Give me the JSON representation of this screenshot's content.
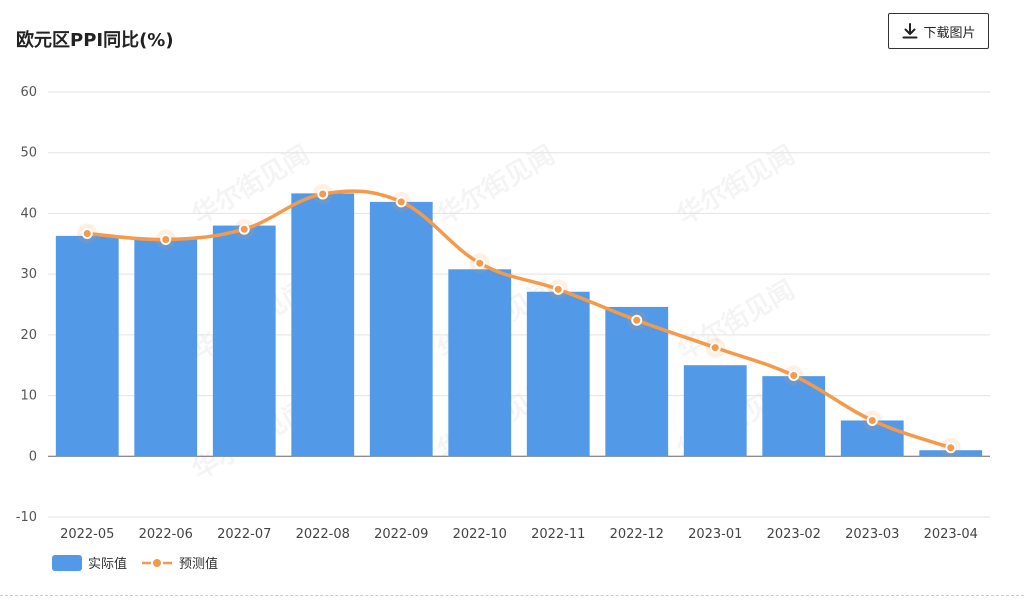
{
  "header": {
    "title": "欧元区PPI同比(%)"
  },
  "toolbar": {
    "download_label": "下载图片",
    "download_icon": "download-icon"
  },
  "watermark_text": "华尔街见闻",
  "chart_data": {
    "type": "bar",
    "categories": [
      "2022-05",
      "2022-06",
      "2022-07",
      "2022-08",
      "2022-09",
      "2022-10",
      "2022-11",
      "2022-12",
      "2023-01",
      "2023-02",
      "2023-03",
      "2023-04"
    ],
    "series": [
      {
        "name": "实际值",
        "type": "bar",
        "color": "#5299e8",
        "values": [
          36.3,
          35.8,
          38.0,
          43.3,
          41.9,
          30.8,
          27.1,
          24.6,
          15.0,
          13.2,
          5.9,
          1.0
        ]
      },
      {
        "name": "预测值",
        "type": "line",
        "color": "#f59a4a",
        "values": [
          36.7,
          35.7,
          37.4,
          43.2,
          41.9,
          31.8,
          27.5,
          22.4,
          17.9,
          13.3,
          5.9,
          1.4
        ]
      }
    ],
    "y_ticks": [
      -10,
      0,
      10,
      20,
      30,
      40,
      50,
      60
    ],
    "ylim": [
      -10,
      60
    ],
    "grid": true,
    "legend_position": "bottom-left"
  }
}
